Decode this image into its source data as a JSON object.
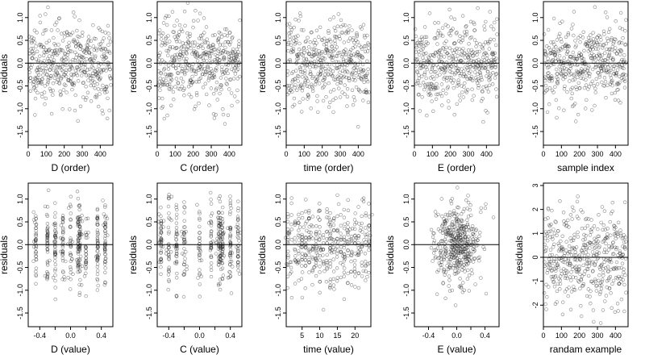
{
  "chart_data": [
    {
      "type": "scatter",
      "row": 0,
      "col": 0,
      "xlabel": "D (order)",
      "ylabel": "residuals",
      "xlim": [
        0,
        470
      ],
      "ylim": [
        -1.8,
        1.35
      ],
      "xticks": [
        0,
        100,
        200,
        300,
        400
      ],
      "yticks": [
        -1.5,
        -1.0,
        -0.5,
        0.0,
        0.5,
        1.0
      ],
      "yticklabels": [
        "-1.5",
        "-1.0",
        "-0.5",
        "0.0",
        "0.5",
        "1.0"
      ],
      "hline": 0,
      "gen": "index",
      "n": 450,
      "scale": 0.45,
      "seed": 11
    },
    {
      "type": "scatter",
      "row": 0,
      "col": 1,
      "xlabel": "C (order)",
      "ylabel": "residuals",
      "xlim": [
        0,
        470
      ],
      "ylim": [
        -1.8,
        1.35
      ],
      "xticks": [
        0,
        100,
        200,
        300,
        400
      ],
      "yticks": [
        -1.5,
        -1.0,
        -0.5,
        0.0,
        0.5,
        1.0
      ],
      "yticklabels": [
        "-1.5",
        "-1.0",
        "-0.5",
        "0.0",
        "0.5",
        "1.0"
      ],
      "hline": 0,
      "gen": "index",
      "n": 450,
      "scale": 0.45,
      "seed": 23
    },
    {
      "type": "scatter",
      "row": 0,
      "col": 2,
      "xlabel": "time (order)",
      "ylabel": "residuals",
      "xlim": [
        0,
        470
      ],
      "ylim": [
        -1.8,
        1.35
      ],
      "xticks": [
        0,
        100,
        200,
        300,
        400
      ],
      "yticks": [
        -1.5,
        -1.0,
        -0.5,
        0.0,
        0.5,
        1.0
      ],
      "yticklabels": [
        "-1.5",
        "-1.0",
        "-0.5",
        "0.0",
        "0.5",
        "1.0"
      ],
      "hline": 0,
      "gen": "index",
      "n": 450,
      "scale": 0.45,
      "seed": 37
    },
    {
      "type": "scatter",
      "row": 0,
      "col": 3,
      "xlabel": "E (order)",
      "ylabel": "residuals",
      "xlim": [
        0,
        470
      ],
      "ylim": [
        -1.8,
        1.35
      ],
      "xticks": [
        0,
        100,
        200,
        300,
        400
      ],
      "yticks": [
        -1.5,
        -1.0,
        -0.5,
        0.0,
        0.5,
        1.0
      ],
      "yticklabels": [
        "-1.5",
        "-1.0",
        "-0.5",
        "0.0",
        "0.5",
        "1.0"
      ],
      "hline": 0,
      "gen": "index",
      "n": 450,
      "scale": 0.45,
      "seed": 41
    },
    {
      "type": "scatter",
      "row": 0,
      "col": 4,
      "xlabel": "sample index",
      "ylabel": "residuals",
      "xlim": [
        0,
        470
      ],
      "ylim": [
        -1.8,
        1.35
      ],
      "xticks": [
        0,
        100,
        200,
        300,
        400
      ],
      "yticks": [
        -1.5,
        -1.0,
        -0.5,
        0.0,
        0.5,
        1.0
      ],
      "yticklabels": [
        "-1.5",
        "-1.0",
        "-0.5",
        "0.0",
        "0.5",
        "1.0"
      ],
      "hline": 0,
      "gen": "index",
      "n": 450,
      "scale": 0.45,
      "seed": 53
    },
    {
      "type": "scatter",
      "row": 1,
      "col": 0,
      "xlabel": "D (value)",
      "ylabel": "residuals",
      "xlim": [
        -0.55,
        0.55
      ],
      "ylim": [
        -1.8,
        1.35
      ],
      "xticks": [
        -0.4,
        -0.2,
        0.0,
        0.2,
        0.4
      ],
      "xticklabels": [
        "-0.4",
        "",
        "0.0",
        "",
        "0.4"
      ],
      "yticks": [
        -1.5,
        -1.0,
        -0.5,
        0.0,
        0.5,
        1.0
      ],
      "yticklabels": [
        "-1.5",
        "-1.0",
        "-0.5",
        "0.0",
        "0.5",
        "1.0"
      ],
      "hline": 0,
      "gen": "columns",
      "columns": [
        -0.45,
        -0.3,
        -0.2,
        -0.1,
        0.0,
        0.1,
        0.12,
        0.2,
        0.35,
        0.45
      ],
      "n": 420,
      "scale": 0.45,
      "seed": 61
    },
    {
      "type": "scatter",
      "row": 1,
      "col": 1,
      "xlabel": "C (value)",
      "ylabel": "residuals",
      "xlim": [
        -0.55,
        0.55
      ],
      "ylim": [
        -1.8,
        1.35
      ],
      "xticks": [
        -0.4,
        -0.2,
        0.0,
        0.2,
        0.4
      ],
      "xticklabels": [
        "-0.4",
        "",
        "0.0",
        "",
        "0.4"
      ],
      "yticks": [
        -1.5,
        -1.0,
        -0.5,
        0.0,
        0.5,
        1.0
      ],
      "yticklabels": [
        "-1.5",
        "-1.0",
        "-0.5",
        "0.0",
        "0.5",
        "1.0"
      ],
      "hline": 0,
      "gen": "columns",
      "columns": [
        -0.5,
        -0.4,
        -0.3,
        -0.2,
        0.0,
        0.15,
        0.25,
        0.27,
        0.3,
        0.4,
        0.5
      ],
      "n": 420,
      "scale": 0.45,
      "seed": 71
    },
    {
      "type": "scatter",
      "row": 1,
      "col": 2,
      "xlabel": "time (value)",
      "ylabel": "residuals",
      "xlim": [
        0.5,
        24.5
      ],
      "ylim": [
        -1.8,
        1.35
      ],
      "xticks": [
        5,
        10,
        15,
        20
      ],
      "yticks": [
        -1.5,
        -1.0,
        -0.5,
        0.0,
        0.5,
        1.0
      ],
      "yticklabels": [
        "-1.5",
        "-1.0",
        "-0.5",
        "0.0",
        "0.5",
        "1.0"
      ],
      "hline": 0,
      "gen": "columns",
      "columns": [
        1,
        2,
        3,
        4,
        5,
        6,
        7,
        8,
        9,
        10,
        11,
        12,
        13,
        14,
        15,
        16,
        17,
        18,
        19,
        20,
        21,
        22,
        23,
        24
      ],
      "n": 430,
      "scale": 0.45,
      "seed": 83
    },
    {
      "type": "scatter",
      "row": 1,
      "col": 3,
      "xlabel": "E (value)",
      "ylabel": "residuals",
      "xlim": [
        -0.6,
        0.6
      ],
      "ylim": [
        -1.8,
        1.35
      ],
      "xticks": [
        -0.4,
        -0.2,
        0.0,
        0.2,
        0.4
      ],
      "xticklabels": [
        "-0.4",
        "",
        "0.0",
        "",
        "0.4"
      ],
      "yticks": [
        -1.5,
        -1.0,
        -0.5,
        0.0,
        0.5,
        1.0
      ],
      "yticklabels": [
        "-1.5",
        "-1.0",
        "-0.5",
        "0.0",
        "0.5",
        "1.0"
      ],
      "hline": 0,
      "gen": "normalx",
      "xmean": 0.0,
      "xsd": 0.17,
      "n": 430,
      "scale": 0.45,
      "seed": 97
    },
    {
      "type": "scatter",
      "row": 1,
      "col": 4,
      "xlabel": "randam example",
      "ylabel": "residuals",
      "xlim": [
        0,
        470
      ],
      "ylim": [
        -2.9,
        3.1
      ],
      "xticks": [
        0,
        100,
        200,
        300,
        400
      ],
      "yticks": [
        -2,
        -1,
        0,
        1,
        2,
        3
      ],
      "yticklabels": [
        "-2",
        "-1",
        "0",
        "1",
        "2",
        "3"
      ],
      "hline": 0,
      "gen": "index",
      "n": 450,
      "scale": 1.0,
      "seed": 101
    }
  ]
}
